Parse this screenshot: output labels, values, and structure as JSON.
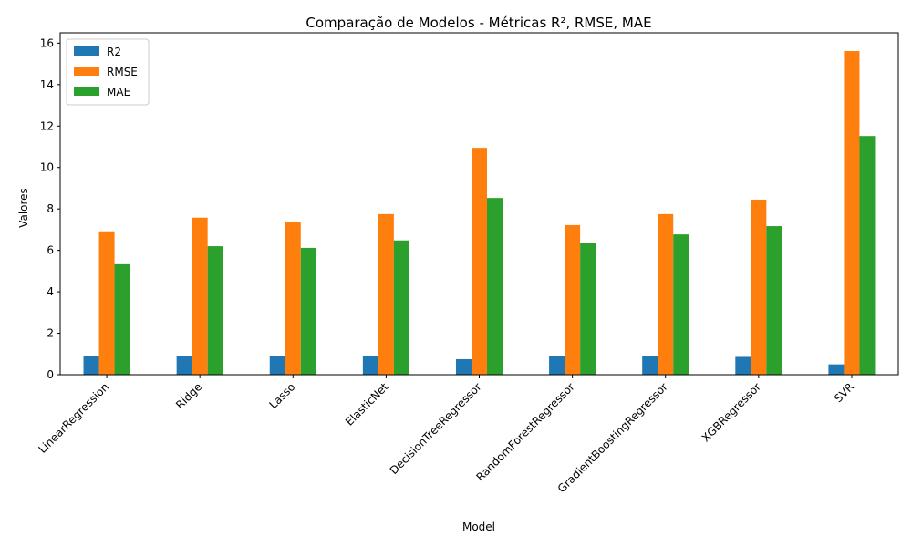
{
  "chart_data": {
    "type": "bar",
    "title": "Comparação de Modelos - Métricas R², RMSE, MAE",
    "xlabel": "Model",
    "ylabel": "Valores",
    "ylim": [
      0,
      16.5
    ],
    "yticks": [
      0,
      2,
      4,
      6,
      8,
      10,
      12,
      14,
      16
    ],
    "categories": [
      "LinearRegression",
      "Ridge",
      "Lasso",
      "ElasticNet",
      "DecisionTreeRegressor",
      "RandomForestRegressor",
      "GradientBoostingRegressor",
      "XGBRegressor",
      "SVR"
    ],
    "series": [
      {
        "name": "R2",
        "color": "#1f77b4",
        "values": [
          0.9,
          0.88,
          0.88,
          0.88,
          0.75,
          0.88,
          0.88,
          0.86,
          0.5
        ]
      },
      {
        "name": "RMSE",
        "color": "#ff7f0e",
        "values": [
          6.92,
          7.58,
          7.37,
          7.75,
          10.95,
          7.22,
          7.75,
          8.45,
          15.62
        ]
      },
      {
        "name": "MAE",
        "color": "#2ca02c",
        "values": [
          5.33,
          6.2,
          6.12,
          6.48,
          8.53,
          6.35,
          6.77,
          7.17,
          11.52
        ]
      }
    ],
    "legend_position": "top-left",
    "grid": false
  }
}
